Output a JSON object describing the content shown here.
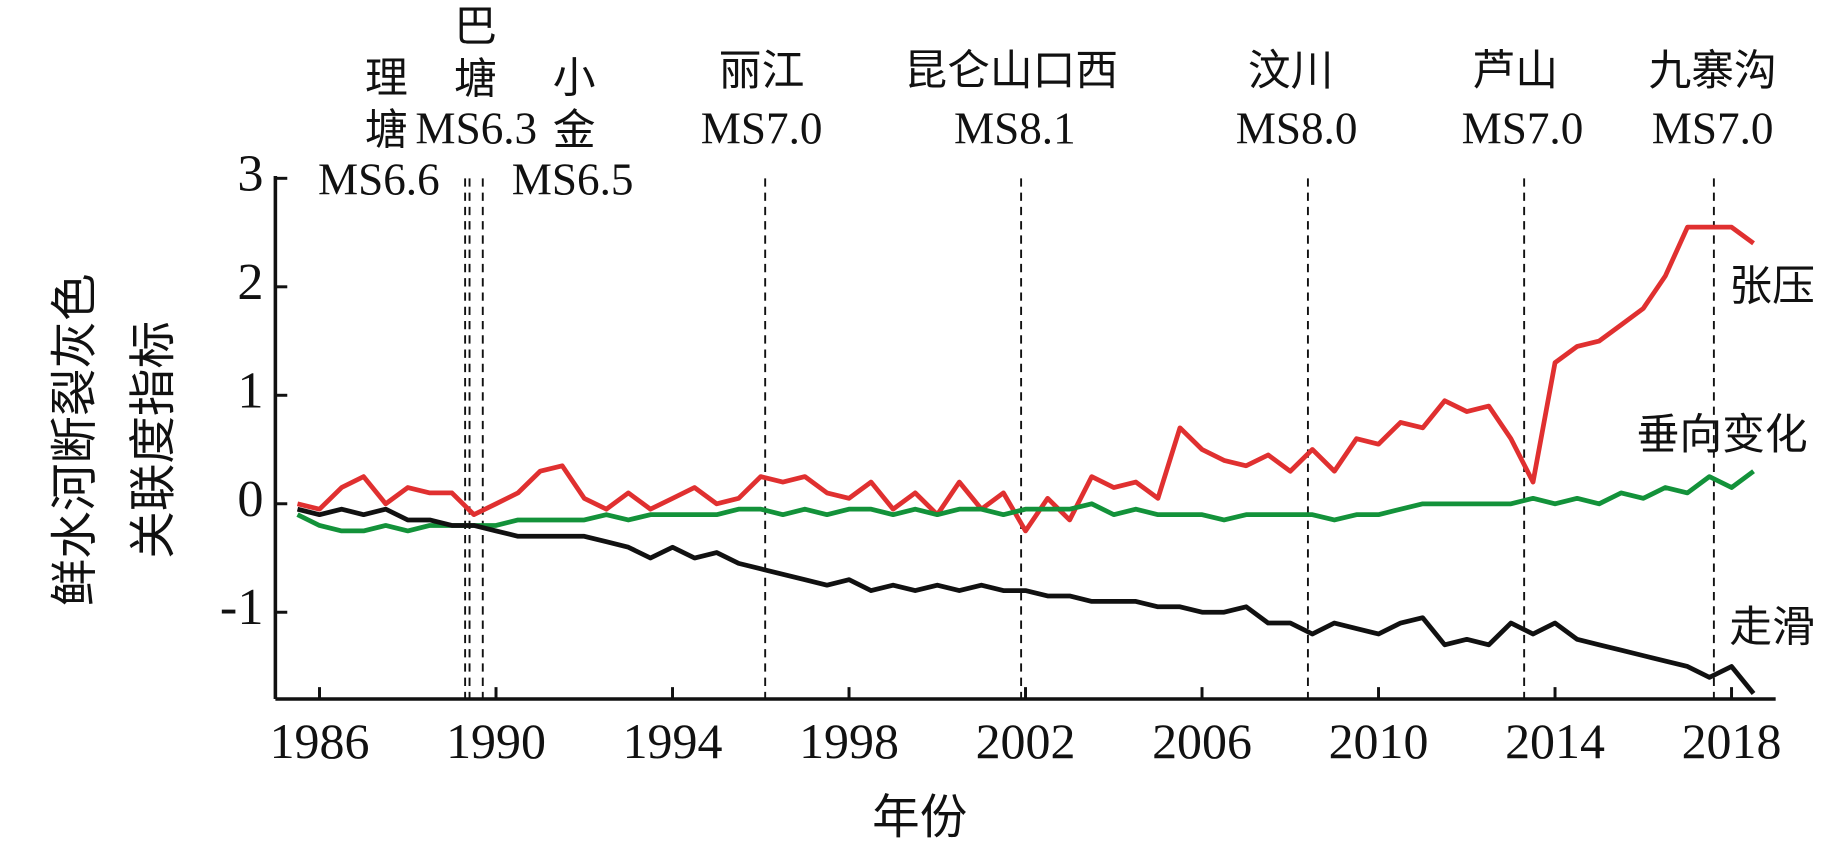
{
  "chart_data": {
    "type": "line",
    "xlabel": "年份",
    "ylabel": [
      "鲜水河断裂灰色",
      "关联度指标"
    ],
    "xlim": [
      1985,
      2019
    ],
    "xticks": [
      1986,
      1990,
      1994,
      1998,
      2002,
      2006,
      2010,
      2014,
      2018
    ],
    "ylim": [
      -1.8,
      3
    ],
    "yticks": [
      -1,
      0,
      1,
      2,
      3
    ],
    "x": [
      1985.5,
      1986,
      1986.5,
      1987,
      1987.5,
      1988,
      1988.5,
      1989,
      1989.5,
      1990,
      1990.5,
      1991,
      1991.5,
      1992,
      1992.5,
      1993,
      1993.5,
      1994,
      1994.5,
      1995,
      1995.5,
      1996,
      1996.5,
      1997,
      1997.5,
      1998,
      1998.5,
      1999,
      1999.5,
      2000,
      2000.5,
      2001,
      2001.5,
      2002,
      2002.5,
      2003,
      2003.5,
      2004,
      2004.5,
      2005,
      2005.5,
      2006,
      2006.5,
      2007,
      2007.5,
      2008,
      2008.5,
      2009,
      2009.5,
      2010,
      2010.5,
      2011,
      2011.5,
      2012,
      2012.5,
      2013,
      2013.5,
      2014,
      2014.5,
      2015,
      2015.5,
      2016,
      2016.5,
      2017,
      2017.5,
      2018,
      2018.5
    ],
    "series": [
      {
        "name": "张压",
        "color": "#e03030",
        "values": [
          0.0,
          -0.05,
          0.15,
          0.25,
          0.0,
          0.15,
          0.1,
          0.1,
          -0.1,
          0.0,
          0.1,
          0.3,
          0.35,
          0.05,
          -0.05,
          0.1,
          -0.05,
          0.05,
          0.15,
          0.0,
          0.05,
          0.25,
          0.2,
          0.25,
          0.1,
          0.05,
          0.2,
          -0.05,
          0.1,
          -0.1,
          0.2,
          -0.05,
          0.1,
          -0.25,
          0.05,
          -0.15,
          0.25,
          0.15,
          0.2,
          0.05,
          0.7,
          0.5,
          0.4,
          0.35,
          0.45,
          0.3,
          0.5,
          0.3,
          0.6,
          0.55,
          0.75,
          0.7,
          0.95,
          0.85,
          0.9,
          0.6,
          0.2,
          1.3,
          1.45,
          1.5,
          1.65,
          1.8,
          2.1,
          2.55,
          2.55,
          2.55,
          2.4
        ]
      },
      {
        "name": "垂向变化",
        "color": "#13923a",
        "values": [
          -0.1,
          -0.2,
          -0.25,
          -0.25,
          -0.2,
          -0.25,
          -0.2,
          -0.2,
          -0.2,
          -0.2,
          -0.15,
          -0.15,
          -0.15,
          -0.15,
          -0.1,
          -0.15,
          -0.1,
          -0.1,
          -0.1,
          -0.1,
          -0.05,
          -0.05,
          -0.1,
          -0.05,
          -0.1,
          -0.05,
          -0.05,
          -0.1,
          -0.05,
          -0.1,
          -0.05,
          -0.05,
          -0.1,
          -0.05,
          -0.05,
          -0.05,
          0.0,
          -0.1,
          -0.05,
          -0.1,
          -0.1,
          -0.1,
          -0.15,
          -0.1,
          -0.1,
          -0.1,
          -0.1,
          -0.15,
          -0.1,
          -0.1,
          -0.05,
          0.0,
          0.0,
          0.0,
          0.0,
          0.0,
          0.05,
          0.0,
          0.05,
          0.0,
          0.1,
          0.05,
          0.15,
          0.1,
          0.25,
          0.15,
          0.3
        ]
      },
      {
        "name": "走滑",
        "color": "#111111",
        "values": [
          -0.05,
          -0.1,
          -0.05,
          -0.1,
          -0.05,
          -0.15,
          -0.15,
          -0.2,
          -0.2,
          -0.25,
          -0.3,
          -0.3,
          -0.3,
          -0.3,
          -0.35,
          -0.4,
          -0.5,
          -0.4,
          -0.5,
          -0.45,
          -0.55,
          -0.6,
          -0.65,
          -0.7,
          -0.75,
          -0.7,
          -0.8,
          -0.75,
          -0.8,
          -0.75,
          -0.8,
          -0.75,
          -0.8,
          -0.8,
          -0.85,
          -0.85,
          -0.9,
          -0.9,
          -0.9,
          -0.95,
          -0.95,
          -1.0,
          -1.0,
          -0.95,
          -1.1,
          -1.1,
          -1.2,
          -1.1,
          -1.15,
          -1.2,
          -1.1,
          -1.05,
          -1.3,
          -1.25,
          -1.3,
          -1.1,
          -1.2,
          -1.1,
          -1.25,
          -1.3,
          -1.35,
          -1.4,
          -1.45,
          -1.5,
          -1.6,
          -1.5,
          -1.75
        ]
      }
    ],
    "events": [
      {
        "name": "理塘",
        "magnitude": "MS6.6",
        "x": 1989.3
      },
      {
        "name": "巴塘",
        "magnitude": "MS6.3",
        "x": 1989.4
      },
      {
        "name": "小金",
        "magnitude": "MS6.5",
        "x": 1989.7
      },
      {
        "name": "丽江",
        "magnitude": "MS7.0",
        "x": 1996.1
      },
      {
        "name": "昆仑山口西",
        "magnitude": "MS8.1",
        "x": 2001.9
      },
      {
        "name": "汶川",
        "magnitude": "MS8.0",
        "x": 2008.4
      },
      {
        "name": "芦山",
        "magnitude": "MS7.0",
        "x": 2013.3
      },
      {
        "name": "九寨沟",
        "magnitude": "MS7.0",
        "x": 2017.6
      }
    ]
  }
}
